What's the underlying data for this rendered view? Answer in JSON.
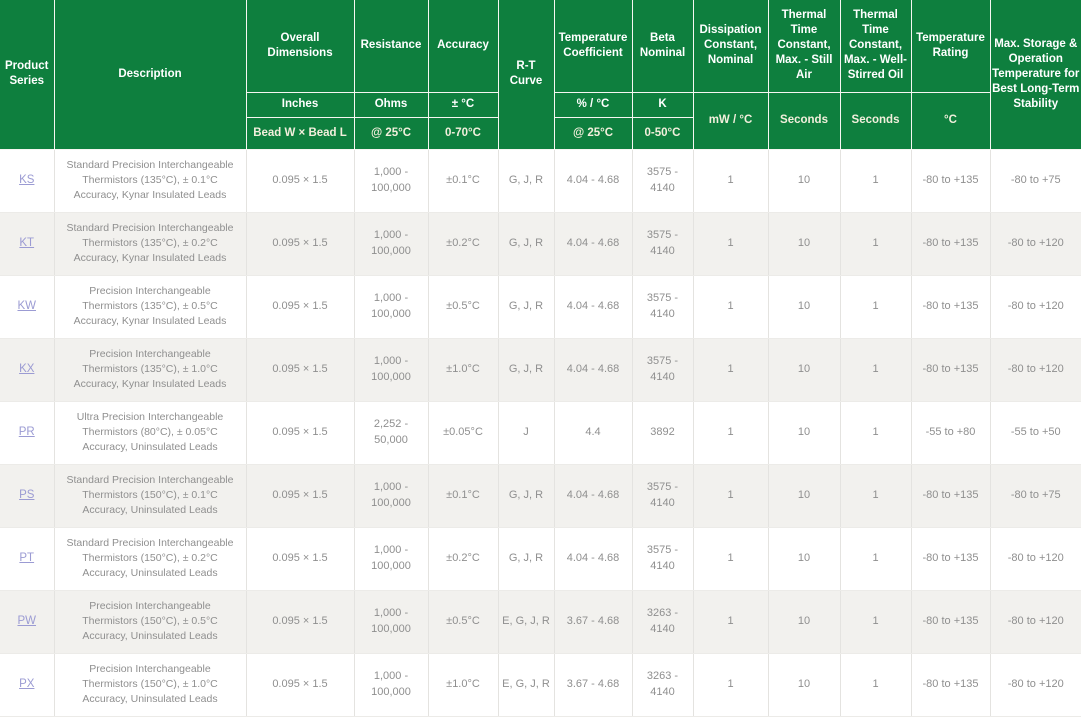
{
  "colors": {
    "header_green": "#0e7f3e",
    "header_text": "#ffffff",
    "header_subtext_ivory": "#f2efdc",
    "row_alt_bg": "#f2f1ee",
    "body_text": "#8f8f8f",
    "link": "#9b9bd3",
    "grid_line": "#e4e3e0"
  },
  "table": {
    "columns": [
      {
        "id": "series",
        "label": "Product Series"
      },
      {
        "id": "description",
        "label": "Description"
      },
      {
        "id": "dimensions",
        "label": "Overall Dimensions",
        "unit": "Inches",
        "condition": "Bead W × Bead L"
      },
      {
        "id": "resistance",
        "label": "Resistance",
        "unit": "Ohms",
        "condition": "@ 25°C"
      },
      {
        "id": "accuracy",
        "label": "Accuracy",
        "unit": "± °C",
        "condition": "0-70°C"
      },
      {
        "id": "rt_curve",
        "label": "R-T Curve"
      },
      {
        "id": "temp_coefficient",
        "label": "Temperature Coefficient",
        "unit": "% / °C",
        "condition": "@ 25°C"
      },
      {
        "id": "beta_nominal",
        "label": "Beta Nominal",
        "unit": "K",
        "condition": "0-50°C"
      },
      {
        "id": "dissipation",
        "label": "Dissipation Constant, Nominal",
        "unit": "mW / °C"
      },
      {
        "id": "ttc_still_air",
        "label": "Thermal Time Constant, Max. - Still Air",
        "unit": "Seconds"
      },
      {
        "id": "ttc_oil",
        "label": "Thermal Time Constant, Max. - Well-Stirred Oil",
        "unit": "Seconds"
      },
      {
        "id": "temp_rating",
        "label": "Temperature Rating",
        "unit": "°C"
      },
      {
        "id": "max_storage",
        "label": "Max. Storage & Operation Temperature for Best Long-Term Stability"
      }
    ],
    "rows": [
      {
        "series": "KS",
        "description": "Standard Precision Interchangeable Thermistors (135°C), ± 0.1°C Accuracy, Kynar Insulated Leads",
        "dimensions": "0.095 × 1.5",
        "resistance": "1,000 - 100,000",
        "accuracy": "±0.1°C",
        "rt_curve": "G, J, R",
        "temp_coefficient": "4.04 - 4.68",
        "beta_nominal": "3575 - 4140",
        "dissipation": "1",
        "ttc_still_air": "10",
        "ttc_oil": "1",
        "temp_rating": "-80 to +135",
        "max_storage": "-80 to +75"
      },
      {
        "series": "KT",
        "description": "Standard Precision Interchangeable Thermistors (135°C), ± 0.2°C Accuracy, Kynar Insulated Leads",
        "dimensions": "0.095 × 1.5",
        "resistance": "1,000 - 100,000",
        "accuracy": "±0.2°C",
        "rt_curve": "G, J, R",
        "temp_coefficient": "4.04 - 4.68",
        "beta_nominal": "3575 - 4140",
        "dissipation": "1",
        "ttc_still_air": "10",
        "ttc_oil": "1",
        "temp_rating": "-80 to +135",
        "max_storage": "-80 to +120"
      },
      {
        "series": "KW",
        "description": "Precision Interchangeable Thermistors (135°C), ± 0.5°C Accuracy, Kynar Insulated Leads",
        "dimensions": "0.095 × 1.5",
        "resistance": "1,000 - 100,000",
        "accuracy": "±0.5°C",
        "rt_curve": "G, J, R",
        "temp_coefficient": "4.04 - 4.68",
        "beta_nominal": "3575 - 4140",
        "dissipation": "1",
        "ttc_still_air": "10",
        "ttc_oil": "1",
        "temp_rating": "-80 to +135",
        "max_storage": "-80 to +120"
      },
      {
        "series": "KX",
        "description": "Precision Interchangeable Thermistors (135°C), ± 1.0°C Accuracy, Kynar Insulated Leads",
        "dimensions": "0.095 × 1.5",
        "resistance": "1,000 - 100,000",
        "accuracy": "±1.0°C",
        "rt_curve": "G, J, R",
        "temp_coefficient": "4.04 - 4.68",
        "beta_nominal": "3575 - 4140",
        "dissipation": "1",
        "ttc_still_air": "10",
        "ttc_oil": "1",
        "temp_rating": "-80 to +135",
        "max_storage": "-80 to +120"
      },
      {
        "series": "PR",
        "description": "Ultra Precision Interchangeable Thermistors (80°C), ± 0.05°C Accuracy, Uninsulated Leads",
        "dimensions": "0.095 × 1.5",
        "resistance": "2,252 - 50,000",
        "accuracy": "±0.05°C",
        "rt_curve": "J",
        "temp_coefficient": "4.4",
        "beta_nominal": "3892",
        "dissipation": "1",
        "ttc_still_air": "10",
        "ttc_oil": "1",
        "temp_rating": "-55 to +80",
        "max_storage": "-55 to +50"
      },
      {
        "series": "PS",
        "description": "Standard Precision Interchangeable Thermistors (150°C), ± 0.1°C Accuracy, Uninsulated Leads",
        "dimensions": "0.095 × 1.5",
        "resistance": "1,000 - 100,000",
        "accuracy": "±0.1°C",
        "rt_curve": "G, J, R",
        "temp_coefficient": "4.04 - 4.68",
        "beta_nominal": "3575 - 4140",
        "dissipation": "1",
        "ttc_still_air": "10",
        "ttc_oil": "1",
        "temp_rating": "-80 to +135",
        "max_storage": "-80 to +75"
      },
      {
        "series": "PT",
        "description": "Standard Precision Interchangeable Thermistors (150°C), ± 0.2°C Accuracy, Uninsulated Leads",
        "dimensions": "0.095 × 1.5",
        "resistance": "1,000 - 100,000",
        "accuracy": "±0.2°C",
        "rt_curve": "G, J, R",
        "temp_coefficient": "4.04 - 4.68",
        "beta_nominal": "3575 - 4140",
        "dissipation": "1",
        "ttc_still_air": "10",
        "ttc_oil": "1",
        "temp_rating": "-80 to +135",
        "max_storage": "-80 to +120"
      },
      {
        "series": "PW",
        "description": "Precision Interchangeable Thermistors (150°C), ± 0.5°C Accuracy, Uninsulated Leads",
        "dimensions": "0.095 × 1.5",
        "resistance": "1,000 - 100,000",
        "accuracy": "±0.5°C",
        "rt_curve": "E, G, J, R",
        "temp_coefficient": "3.67 - 4.68",
        "beta_nominal": "3263 - 4140",
        "dissipation": "1",
        "ttc_still_air": "10",
        "ttc_oil": "1",
        "temp_rating": "-80 to +135",
        "max_storage": "-80 to +120"
      },
      {
        "series": "PX",
        "description": "Precision Interchangeable Thermistors (150°C), ± 1.0°C Accuracy, Uninsulated Leads",
        "dimensions": "0.095 × 1.5",
        "resistance": "1,000 - 100,000",
        "accuracy": "±1.0°C",
        "rt_curve": "E, G, J, R",
        "temp_coefficient": "3.67 - 4.68",
        "beta_nominal": "3263 - 4140",
        "dissipation": "1",
        "ttc_still_air": "10",
        "ttc_oil": "1",
        "temp_rating": "-80 to +135",
        "max_storage": "-80 to +120"
      }
    ]
  }
}
